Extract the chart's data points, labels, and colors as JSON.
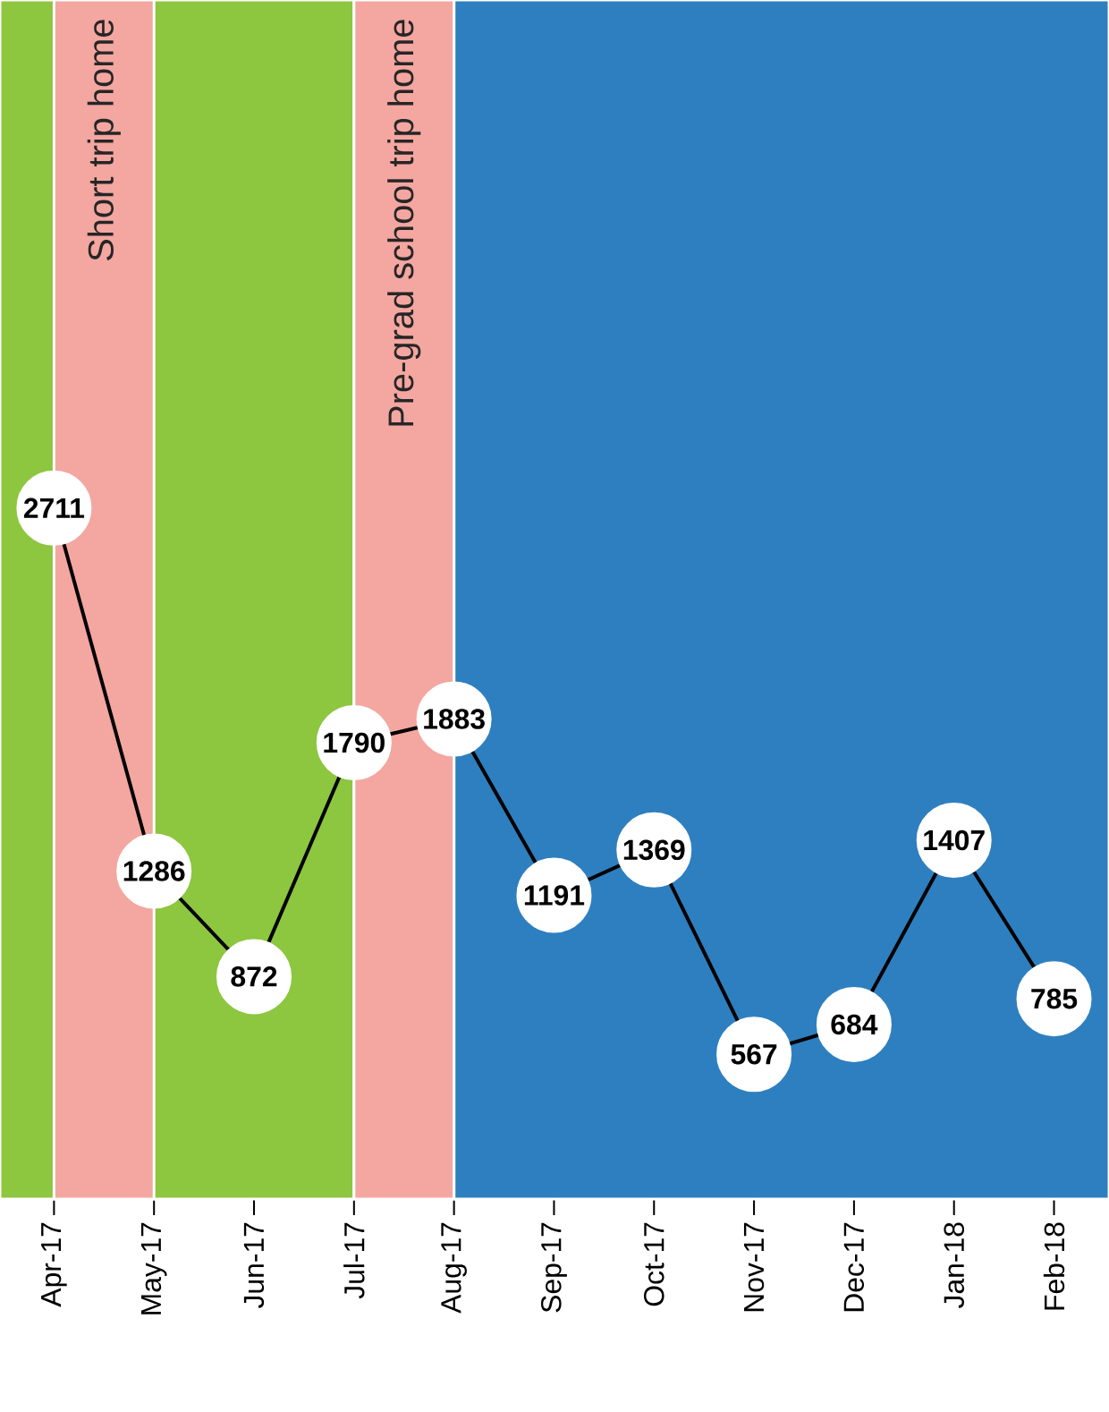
{
  "chart_data": {
    "type": "line",
    "categories": [
      "Apr-17",
      "May-17",
      "Jun-17",
      "Jul-17",
      "Aug-17",
      "Sep-17",
      "Oct-17",
      "Nov-17",
      "Dec-17",
      "Jan-18",
      "Feb-18"
    ],
    "values": [
      2711,
      1286,
      872,
      1790,
      1883,
      1191,
      1369,
      567,
      684,
      1407,
      785
    ],
    "value_labels": [
      "2711",
      "1286",
      "872",
      "1790",
      "1883",
      "1191",
      "1369",
      "567",
      "684",
      "1407",
      "785"
    ],
    "color": "#000000",
    "marker": "circle",
    "tick_labels": "x",
    "bands": [
      {
        "axis": "x",
        "from": "Apr-17",
        "to": "Jul-17",
        "color": "#8dc63f"
      },
      {
        "axis": "x",
        "from": "Aug-17",
        "to": "Feb-18",
        "color": "#2e7fbf"
      },
      {
        "axis": "x",
        "from": "Apr-17",
        "to": "May-17",
        "color": "#f4a6a0",
        "label": "Short trip home"
      },
      {
        "axis": "x",
        "from": "Jul-17",
        "to": "Aug-17",
        "color": "#f4a6a0",
        "label": "Pre-grad school trip home"
      }
    ]
  }
}
